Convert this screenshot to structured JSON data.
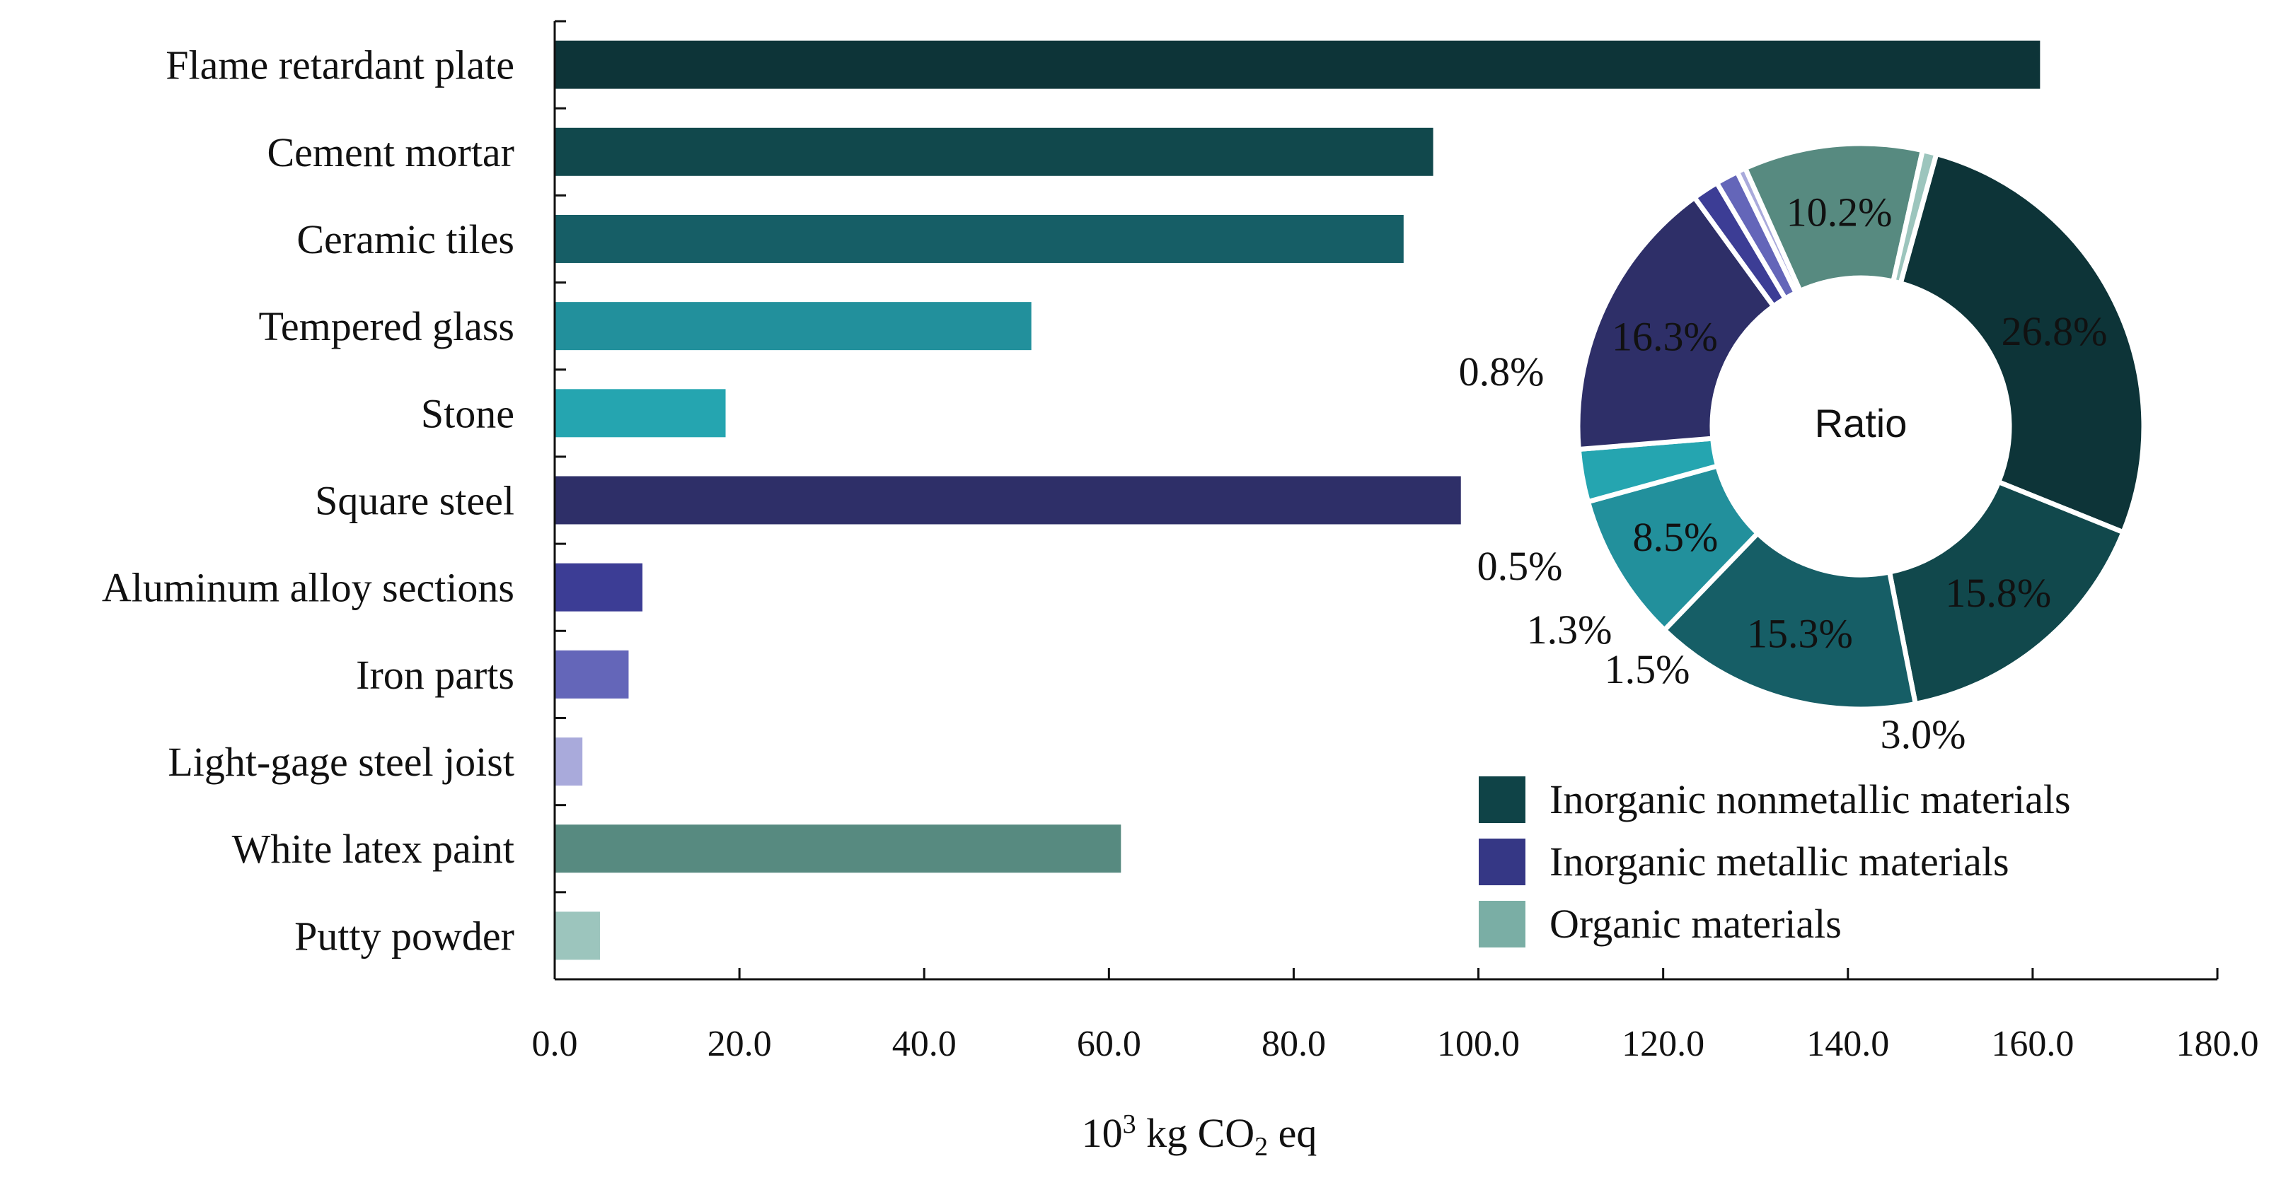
{
  "chart_data": [
    {
      "type": "bar",
      "orientation": "horizontal",
      "categories": [
        "Flame retardant plate",
        "Cement mortar",
        "Ceramic tiles",
        "Tempered glass",
        "Stone",
        "Square steel",
        "Aluminum alloy sections",
        "Iron parts",
        "Light-gage steel joist",
        "White latex paint",
        "Putty powder"
      ],
      "values": [
        160.8,
        95.1,
        91.9,
        51.6,
        18.5,
        98.1,
        9.5,
        8.0,
        3.0,
        61.3,
        4.9
      ],
      "colors": [
        "#0d3438",
        "#11484c",
        "#165e66",
        "#22909c",
        "#25a5b0",
        "#2e2f68",
        "#3c3d95",
        "#6466b9",
        "#a9aadb",
        "#578a80",
        "#9cc5bd"
      ],
      "xlim": [
        0,
        180
      ],
      "xticks": [
        "0.0",
        "20.0",
        "40.0",
        "60.0",
        "80.0",
        "100.0",
        "120.0",
        "140.0",
        "160.0",
        "180.0"
      ],
      "xlabel": {
        "base": "10",
        "sup": "3",
        "mid": " kg CO",
        "sub": "2",
        "end": " eq"
      },
      "grid": false
    },
    {
      "type": "pie",
      "style": "donut",
      "center_label": "Ratio",
      "slices": [
        {
          "value": 26.8,
          "label": "26.8%",
          "color": "#0d3438"
        },
        {
          "value": 15.8,
          "label": "15.8%",
          "color": "#11484c"
        },
        {
          "value": 15.3,
          "label": "15.3%",
          "color": "#165e66"
        },
        {
          "value": 8.5,
          "label": "8.5%",
          "color": "#22909c"
        },
        {
          "value": 3.0,
          "label": "3.0%",
          "color": "#25a5b0"
        },
        {
          "value": 16.3,
          "label": "16.3%",
          "color": "#2e2f68"
        },
        {
          "value": 1.5,
          "label": "1.5%",
          "color": "#3c3d95"
        },
        {
          "value": 1.3,
          "label": "1.3%",
          "color": "#6466b9"
        },
        {
          "value": 0.5,
          "label": "0.5%",
          "color": "#a9aadb"
        },
        {
          "value": 10.2,
          "label": "10.2%",
          "color": "#578a80"
        },
        {
          "value": 0.8,
          "label": "0.8%",
          "color": "#9cc5bd"
        }
      ]
    }
  ],
  "legend": [
    {
      "label": "Inorganic nonmetallic materials",
      "color": "#0f4347"
    },
    {
      "label": "Inorganic metallic materials",
      "color": "#353785"
    },
    {
      "label": "Organic materials",
      "color": "#7aaea5"
    }
  ]
}
